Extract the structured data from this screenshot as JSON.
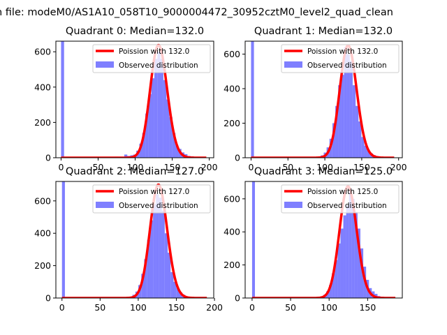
{
  "figure": {
    "suptitle": "n file: modeM0/AS1A10_058T10_9000004472_30952cztM0_level2_quad_clean"
  },
  "colors": {
    "hist_fill": "#0000ff",
    "hist_alpha": 0.5,
    "poisson_line": "#ff0000",
    "axis": "#000000",
    "background": "#ffffff",
    "legend_border": "#cccccc"
  },
  "chart_data": [
    {
      "type": "histogram",
      "title": "Quadrant 0: Median=132.0",
      "median": 132.0,
      "legend": {
        "poisson_label": "Poission with 132.0",
        "hist_label": "Observed distribution",
        "placement": "top-right"
      },
      "xlim": [
        -7,
        206
      ],
      "ylim": [
        0,
        660
      ],
      "xticks": [
        0,
        50,
        100,
        150,
        200
      ],
      "yticks": [
        0,
        200,
        400,
        600
      ],
      "bin_width": 4.06,
      "bins": [
        {
          "x": 0,
          "count": 660
        },
        {
          "x": 40.6,
          "count": 4
        },
        {
          "x": 73.1,
          "count": 6
        },
        {
          "x": 85.3,
          "count": 18
        },
        {
          "x": 89.3,
          "count": 10
        },
        {
          "x": 93.4,
          "count": 14
        },
        {
          "x": 97.4,
          "count": 18
        },
        {
          "x": 101.5,
          "count": 40
        },
        {
          "x": 105.6,
          "count": 80
        },
        {
          "x": 109.6,
          "count": 140
        },
        {
          "x": 113.7,
          "count": 250
        },
        {
          "x": 117.8,
          "count": 360
        },
        {
          "x": 121.8,
          "count": 450
        },
        {
          "x": 125.9,
          "count": 560
        },
        {
          "x": 130.0,
          "count": 600
        },
        {
          "x": 134.0,
          "count": 560
        },
        {
          "x": 138.1,
          "count": 440
        },
        {
          "x": 142.1,
          "count": 330
        },
        {
          "x": 146.2,
          "count": 230
        },
        {
          "x": 150.3,
          "count": 140
        },
        {
          "x": 154.3,
          "count": 70
        },
        {
          "x": 158.4,
          "count": 50
        },
        {
          "x": 162.4,
          "count": 30
        },
        {
          "x": 166.5,
          "count": 20
        },
        {
          "x": 170.6,
          "count": 10
        },
        {
          "x": 174.6,
          "count": 8
        },
        {
          "x": 178.7,
          "count": 5
        },
        {
          "x": 182.8,
          "count": 4
        },
        {
          "x": 186.8,
          "count": 3
        },
        {
          "x": 190.9,
          "count": 2
        }
      ],
      "poisson": {
        "mean": 132.0,
        "scale": 638,
        "x_range": [
          0,
          196
        ]
      }
    },
    {
      "type": "histogram",
      "title": "Quadrant 1: Median=132.0",
      "median": 132.0,
      "legend": {
        "poisson_label": "Poission with 132.0",
        "hist_label": "Observed distribution",
        "placement": "top-right"
      },
      "xlim": [
        -8,
        205
      ],
      "ylim": [
        0,
        675
      ],
      "xticks": [
        0,
        50,
        100,
        150,
        200
      ],
      "yticks": [
        0,
        200,
        400,
        600
      ],
      "bin_width": 3.93,
      "bins": [
        {
          "x": 0,
          "count": 675
        },
        {
          "x": 90.6,
          "count": 6
        },
        {
          "x": 94.5,
          "count": 14
        },
        {
          "x": 98.5,
          "count": 30
        },
        {
          "x": 102.4,
          "count": 60
        },
        {
          "x": 106.3,
          "count": 110
        },
        {
          "x": 110.3,
          "count": 200
        },
        {
          "x": 114.2,
          "count": 300
        },
        {
          "x": 118.1,
          "count": 420
        },
        {
          "x": 122.0,
          "count": 480
        },
        {
          "x": 126.0,
          "count": 640
        },
        {
          "x": 129.9,
          "count": 600
        },
        {
          "x": 133.8,
          "count": 560
        },
        {
          "x": 137.8,
          "count": 420
        },
        {
          "x": 141.7,
          "count": 300
        },
        {
          "x": 145.6,
          "count": 210
        },
        {
          "x": 149.6,
          "count": 120
        },
        {
          "x": 153.5,
          "count": 70
        },
        {
          "x": 157.4,
          "count": 40
        },
        {
          "x": 161.4,
          "count": 25
        },
        {
          "x": 165.3,
          "count": 15
        },
        {
          "x": 169.2,
          "count": 10
        },
        {
          "x": 173.2,
          "count": 6
        },
        {
          "x": 177.1,
          "count": 4
        },
        {
          "x": 181.0,
          "count": 3
        },
        {
          "x": 185.0,
          "count": 2
        }
      ],
      "poisson": {
        "mean": 132.0,
        "scale": 650,
        "x_range": [
          0,
          194
        ]
      }
    },
    {
      "type": "histogram",
      "title": "Quadrant 2: Median=127.0",
      "median": 127.0,
      "legend": {
        "poisson_label": "Poission with 127.0",
        "hist_label": "Observed distribution",
        "placement": "top-right"
      },
      "xlim": [
        -8,
        199
      ],
      "ylim": [
        0,
        720
      ],
      "xticks": [
        0,
        50,
        100,
        150,
        200
      ],
      "yticks": [
        0,
        200,
        400,
        600
      ],
      "bin_width": 3.85,
      "bins": [
        {
          "x": 0,
          "count": 720
        },
        {
          "x": 84.7,
          "count": 5
        },
        {
          "x": 88.5,
          "count": 8
        },
        {
          "x": 92.4,
          "count": 20
        },
        {
          "x": 96.3,
          "count": 40
        },
        {
          "x": 100.1,
          "count": 80
        },
        {
          "x": 104.0,
          "count": 150
        },
        {
          "x": 107.8,
          "count": 240
        },
        {
          "x": 111.7,
          "count": 360
        },
        {
          "x": 115.5,
          "count": 480
        },
        {
          "x": 119.4,
          "count": 580
        },
        {
          "x": 123.2,
          "count": 640
        },
        {
          "x": 127.1,
          "count": 620
        },
        {
          "x": 130.9,
          "count": 540
        },
        {
          "x": 134.8,
          "count": 400
        },
        {
          "x": 138.6,
          "count": 280
        },
        {
          "x": 142.5,
          "count": 160
        },
        {
          "x": 146.3,
          "count": 100
        },
        {
          "x": 150.2,
          "count": 60
        },
        {
          "x": 154.0,
          "count": 35
        },
        {
          "x": 157.9,
          "count": 20
        },
        {
          "x": 161.7,
          "count": 10
        },
        {
          "x": 165.6,
          "count": 8
        },
        {
          "x": 169.4,
          "count": 5
        },
        {
          "x": 173.3,
          "count": 3
        },
        {
          "x": 177.1,
          "count": 2
        }
      ],
      "poisson": {
        "mean": 127.0,
        "scale": 700,
        "x_range": [
          0,
          190
        ]
      }
    },
    {
      "type": "histogram",
      "title": "Quadrant 3: Median=125.0",
      "median": 125.0,
      "legend": {
        "poisson_label": "Poission with 125.0",
        "hist_label": "Observed distribution",
        "placement": "top-right"
      },
      "xlim": [
        -9,
        195
      ],
      "ylim": [
        0,
        705
      ],
      "xticks": [
        0,
        50,
        100,
        150
      ],
      "yticks": [
        0,
        200,
        400,
        600
      ],
      "bin_width": 3.7,
      "bins": [
        {
          "x": 0,
          "count": 705
        },
        {
          "x": 88.8,
          "count": 10
        },
        {
          "x": 92.5,
          "count": 20
        },
        {
          "x": 96.2,
          "count": 40
        },
        {
          "x": 99.9,
          "count": 80
        },
        {
          "x": 103.6,
          "count": 150
        },
        {
          "x": 107.3,
          "count": 230
        },
        {
          "x": 111.0,
          "count": 330
        },
        {
          "x": 114.7,
          "count": 420
        },
        {
          "x": 118.4,
          "count": 500
        },
        {
          "x": 122.1,
          "count": 560
        },
        {
          "x": 125.8,
          "count": 660
        },
        {
          "x": 129.5,
          "count": 600
        },
        {
          "x": 133.2,
          "count": 520
        },
        {
          "x": 136.9,
          "count": 420
        },
        {
          "x": 140.6,
          "count": 300
        },
        {
          "x": 144.3,
          "count": 190
        },
        {
          "x": 148.0,
          "count": 110
        },
        {
          "x": 151.7,
          "count": 60
        },
        {
          "x": 155.4,
          "count": 40
        },
        {
          "x": 159.1,
          "count": 25
        },
        {
          "x": 162.8,
          "count": 12
        },
        {
          "x": 166.5,
          "count": 8
        },
        {
          "x": 170.2,
          "count": 5
        },
        {
          "x": 173.9,
          "count": 3
        }
      ],
      "poisson": {
        "mean": 125.0,
        "scale": 675,
        "x_range": [
          0,
          186
        ]
      }
    }
  ]
}
